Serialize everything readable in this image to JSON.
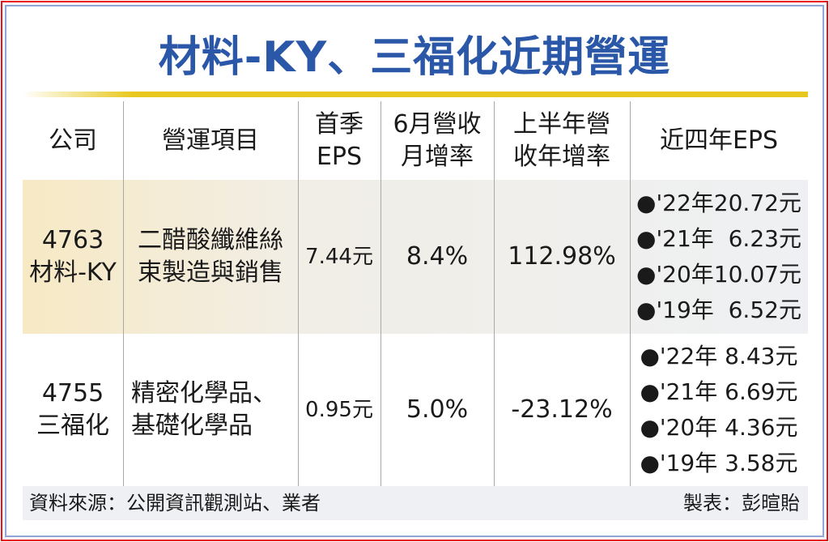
{
  "title": "材料-KY、三福化近期營運",
  "colors": {
    "title": "#2a57a8",
    "accent_bar": "#e8c81e",
    "border": "#e8121c"
  },
  "table": {
    "headers": [
      "公司",
      "營運項目",
      "首季\nEPS",
      "6月營收\n月增率",
      "上半年營\n收年增率",
      "近四年EPS"
    ],
    "rows": [
      {
        "code": "4763",
        "company": "材料-KY",
        "business": [
          "二醋酸纖維絲",
          "束製造與銷售"
        ],
        "q1_eps": "7.44元",
        "june_mom": "8.4%",
        "h1_yoy": "112.98%",
        "eps4": [
          "●'22年20.72元",
          "●'21年  6.23元",
          "●'20年10.07元",
          "●'19年  6.52元"
        ]
      },
      {
        "code": "4755",
        "company": "三福化",
        "business": [
          "精密化學品、",
          "基礎化學品"
        ],
        "q1_eps": "0.95元",
        "june_mom": "5.0%",
        "h1_yoy": "-23.12%",
        "eps4": [
          "●'22年 8.43元",
          "●'21年 6.69元",
          "●'20年 4.36元",
          "●'19年 3.58元"
        ]
      }
    ]
  },
  "footer": {
    "source": "資料來源：公開資訊觀測站、業者",
    "credit": "製表：彭暄貽"
  }
}
